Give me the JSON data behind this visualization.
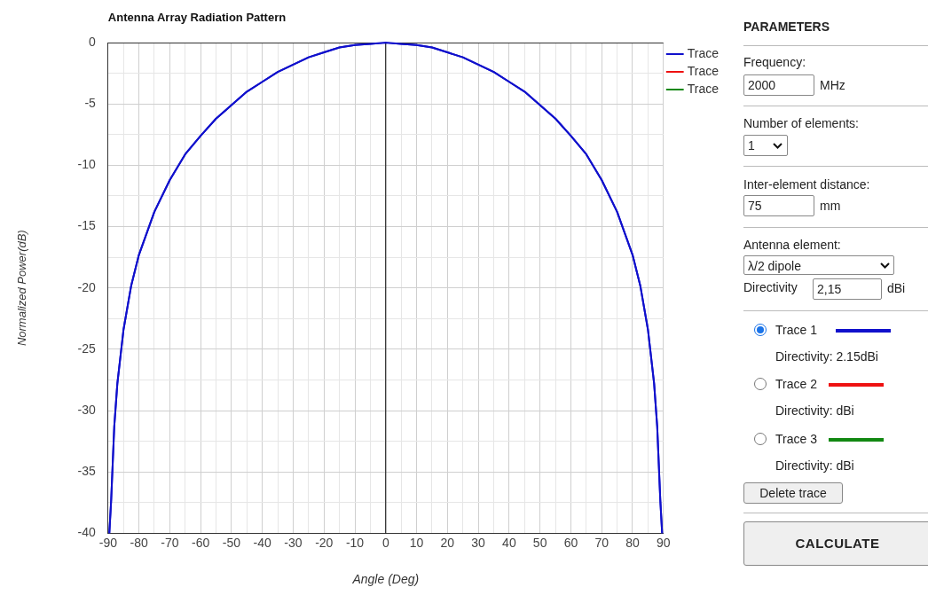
{
  "chart_data": [
    {
      "type": "line",
      "title": "Antenna Array Radiation Pattern",
      "xlabel": "Angle (Deg)",
      "ylabel": "Normalized Power(dB)",
      "x": [
        -89.6,
        -89,
        -88,
        -87,
        -85,
        -82.5,
        -80,
        -75,
        -70,
        -65,
        -60,
        -55,
        -50,
        -45,
        -40,
        -35,
        -30,
        -25,
        -20,
        -15,
        -10,
        -5,
        0,
        5,
        10,
        15,
        20,
        25,
        30,
        35,
        40,
        45,
        50,
        55,
        60,
        65,
        70,
        75,
        80,
        82.5,
        85,
        87,
        88,
        89,
        89.6
      ],
      "series": [
        {
          "name": "Trace",
          "color": "#1010cc",
          "values": [
            -40,
            -37.3,
            -31.3,
            -27.8,
            -23.4,
            -19.8,
            -17.3,
            -13.8,
            -11.2,
            -9.1,
            -7.6,
            -6.2,
            -5.1,
            -4,
            -3.2,
            -2.4,
            -1.8,
            -1.2,
            -0.8,
            -0.4,
            -0.2,
            -0.1,
            0,
            -0.1,
            -0.2,
            -0.4,
            -0.8,
            -1.2,
            -1.8,
            -2.4,
            -3.2,
            -4,
            -5.1,
            -6.2,
            -7.6,
            -9.1,
            -11.2,
            -13.8,
            -17.3,
            -19.8,
            -23.4,
            -27.8,
            -31.3,
            -37.3,
            -40
          ]
        },
        {
          "name": "Trace",
          "color": "#ee1111",
          "values": [
            null,
            null,
            null,
            null,
            null,
            null,
            null,
            null,
            null,
            null,
            null,
            null,
            null,
            null,
            null,
            null,
            null,
            null,
            null,
            null,
            null,
            null,
            null,
            null,
            null,
            null,
            null,
            null,
            null,
            null,
            null,
            null,
            null,
            null,
            null,
            null,
            null,
            null,
            null,
            null,
            null,
            null,
            null,
            null,
            null
          ]
        },
        {
          "name": "Trace",
          "color": "#118811",
          "values": [
            null,
            null,
            null,
            null,
            null,
            null,
            null,
            null,
            null,
            null,
            null,
            null,
            null,
            null,
            null,
            null,
            null,
            null,
            null,
            null,
            null,
            null,
            null,
            null,
            null,
            null,
            null,
            null,
            null,
            null,
            null,
            null,
            null,
            null,
            null,
            null,
            null,
            null,
            null,
            null,
            null,
            null,
            null,
            null,
            null
          ]
        }
      ],
      "xlim": [
        -90,
        90
      ],
      "xticks": [
        -90,
        {
          "value": -85,
          "label": null
        },
        -80,
        {
          "value": -75,
          "label": null
        },
        -70,
        {
          "value": -65,
          "label": null
        },
        -60,
        {
          "value": -55,
          "label": null
        },
        -50,
        {
          "value": -45,
          "label": null
        },
        -40,
        {
          "value": -35,
          "label": null
        },
        -30,
        {
          "value": -25,
          "label": null
        },
        -20,
        {
          "value": -15,
          "label": null
        },
        -10,
        {
          "value": -5,
          "label": null
        },
        0,
        {
          "value": 5,
          "label": null
        },
        10,
        {
          "value": 15,
          "label": null
        },
        20,
        {
          "value": 25,
          "label": null
        },
        30,
        {
          "value": 35,
          "label": null
        },
        40,
        {
          "value": 45,
          "label": null
        },
        50,
        {
          "value": 55,
          "label": null
        },
        60,
        {
          "value": 65,
          "label": null
        },
        70,
        {
          "value": 75,
          "label": null
        },
        80,
        {
          "value": 85,
          "label": null
        },
        90
      ],
      "ylim": [
        -40,
        0
      ],
      "yticks": [
        -40,
        {
          "value": -37.5,
          "label": null
        },
        -35,
        {
          "value": -32.5,
          "label": null
        },
        -30,
        {
          "value": -27.5,
          "label": null
        },
        -25,
        {
          "value": -22.5,
          "label": null
        },
        -20,
        {
          "value": -17.5,
          "label": null
        },
        -15,
        {
          "value": -12.5,
          "label": null
        },
        -10,
        {
          "value": -7.5,
          "label": null
        },
        -5,
        {
          "value": -2.5,
          "label": null
        },
        0
      ],
      "ref_lines": [
        {
          "axis": "x",
          "value": 0,
          "color": "#000000"
        }
      ],
      "grid": true,
      "legend": "top right",
      "marker": "none",
      "line_style": "solid",
      "annotations": [
        "PARAMETERS",
        "Frequency:",
        "2000",
        "MHz",
        "Number of elements:",
        "1",
        "Inter-element distance:",
        "75",
        "mm",
        "Antenna element:",
        "λ/2 dipole",
        "Directivity",
        "2,15",
        "dBi",
        "Trace 1",
        "Directivity: 2.15dBi",
        "Trace 2",
        "Directivity: dBi",
        "Trace 3",
        "Directivity: dBi",
        "Delete trace",
        "CALCULATE"
      ]
    }
  ]
}
